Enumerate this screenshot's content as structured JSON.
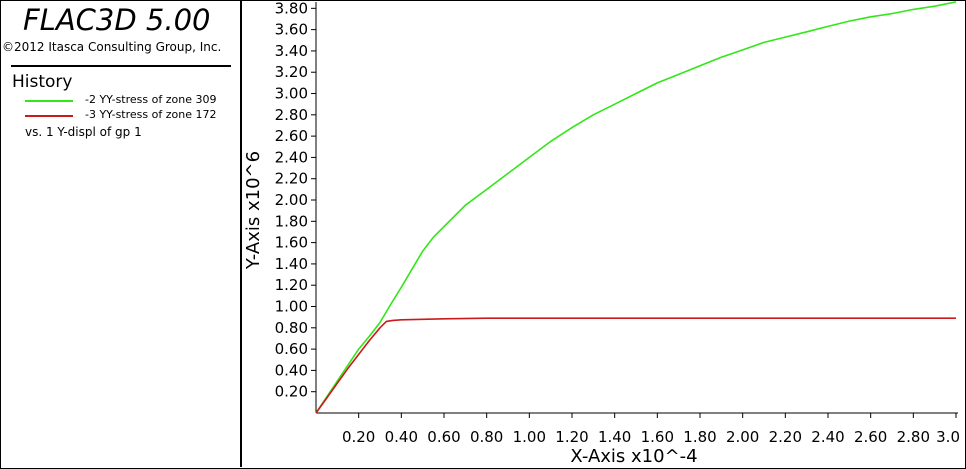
{
  "app": {
    "title": "FLAC3D 5.00",
    "copyright": "©2012 Itasca Consulting Group, Inc."
  },
  "legend": {
    "heading": "History",
    "vs_label": "vs.  1 Y-displ of gp 1",
    "items": [
      {
        "label": "-2 YY-stress of zone 309",
        "color": "#33e61a"
      },
      {
        "label": "-3 YY-stress of zone 172",
        "color": "#cc1a1a"
      }
    ]
  },
  "chart_data": {
    "type": "line",
    "xlabel": "X-Axis x10^-4",
    "ylabel": "Y-Axis x10^6",
    "xlim": [
      0.0,
      3.0
    ],
    "ylim": [
      0.0,
      3.85
    ],
    "x_ticks": [
      "0.20",
      "0.40",
      "0.60",
      "0.80",
      "1.00",
      "1.20",
      "1.40",
      "1.60",
      "1.80",
      "2.00",
      "2.20",
      "2.40",
      "2.60",
      "2.80",
      "3.0"
    ],
    "x_tick_values": [
      0.2,
      0.4,
      0.6,
      0.8,
      1.0,
      1.2,
      1.4,
      1.6,
      1.8,
      2.0,
      2.2,
      2.4,
      2.6,
      2.8,
      3.0
    ],
    "y_ticks": [
      "0.20",
      "0.40",
      "0.60",
      "0.80",
      "1.00",
      "1.20",
      "1.40",
      "1.60",
      "1.80",
      "2.00",
      "2.20",
      "2.40",
      "2.60",
      "2.80",
      "3.00",
      "3.20",
      "3.40",
      "3.60",
      "3.80"
    ],
    "y_tick_values": [
      0.2,
      0.4,
      0.6,
      0.8,
      1.0,
      1.2,
      1.4,
      1.6,
      1.8,
      2.0,
      2.2,
      2.4,
      2.6,
      2.8,
      3.0,
      3.2,
      3.4,
      3.6,
      3.8
    ],
    "grid": false,
    "series": [
      {
        "color": "#33e61a",
        "x": [
          0.0,
          0.05,
          0.1,
          0.15,
          0.2,
          0.25,
          0.3,
          0.35,
          0.4,
          0.45,
          0.5,
          0.55,
          0.6,
          0.7,
          0.8,
          0.9,
          1.0,
          1.1,
          1.2,
          1.3,
          1.4,
          1.5,
          1.6,
          1.7,
          1.8,
          1.9,
          2.0,
          2.1,
          2.2,
          2.3,
          2.4,
          2.5,
          2.6,
          2.7,
          2.8,
          2.9,
          3.0
        ],
        "y": [
          0.0,
          0.15,
          0.3,
          0.45,
          0.6,
          0.72,
          0.85,
          1.02,
          1.18,
          1.35,
          1.52,
          1.65,
          1.75,
          1.95,
          2.1,
          2.25,
          2.4,
          2.55,
          2.68,
          2.8,
          2.9,
          3.0,
          3.1,
          3.18,
          3.26,
          3.34,
          3.41,
          3.48,
          3.53,
          3.58,
          3.63,
          3.68,
          3.72,
          3.75,
          3.79,
          3.82,
          3.86
        ]
      },
      {
        "color": "#cc1a1a",
        "x": [
          0.0,
          0.05,
          0.1,
          0.15,
          0.2,
          0.25,
          0.3,
          0.33,
          0.36,
          0.4,
          0.5,
          0.6,
          0.8,
          1.0,
          1.2,
          1.5,
          1.8,
          2.0,
          2.4,
          2.8,
          3.0
        ],
        "y": [
          0.0,
          0.14,
          0.28,
          0.42,
          0.55,
          0.68,
          0.8,
          0.86,
          0.87,
          0.875,
          0.88,
          0.885,
          0.89,
          0.89,
          0.89,
          0.89,
          0.89,
          0.89,
          0.89,
          0.89,
          0.89
        ]
      }
    ]
  }
}
